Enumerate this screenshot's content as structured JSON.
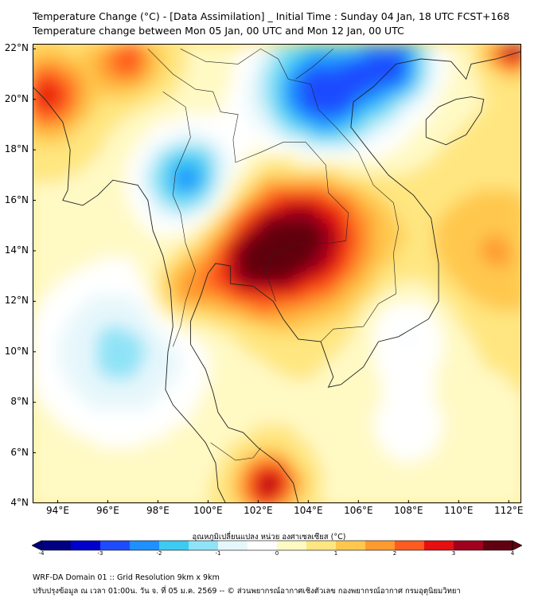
{
  "header": {
    "title_line1": "Temperature Change (°C) - [Data Assimilation] _ Initial Time : Sunday 04 Jan, 18 UTC FCST+168",
    "title_line2": "Temperature change between Mon 05 Jan, 00 UTC and Mon 12 Jan, 00 UTC"
  },
  "map": {
    "lon_labels": [
      "94°E",
      "96°E",
      "98°E",
      "100°E",
      "102°E",
      "104°E",
      "106°E",
      "108°E",
      "110°E",
      "112°E"
    ],
    "lat_labels": [
      "22°N",
      "20°N",
      "18°N",
      "16°N",
      "14°N",
      "12°N",
      "10°N",
      "8°N",
      "6°N",
      "4°N"
    ],
    "lon_range": [
      93,
      112.5
    ],
    "lat_range": [
      4,
      22.2
    ],
    "lon_values": [
      94,
      96,
      98,
      100,
      102,
      104,
      106,
      108,
      110,
      112
    ],
    "lat_values": [
      22,
      20,
      18,
      16,
      14,
      12,
      10,
      8,
      6,
      4
    ],
    "features": [
      {
        "name": "warm-core-central-indochina",
        "lon": 103.8,
        "lat": 14.6,
        "delta": 3.3,
        "spread": 1.9
      },
      {
        "name": "warm-east-thailand",
        "lon": 101.6,
        "lat": 13.4,
        "delta": 2.2,
        "spread": 1.3
      },
      {
        "name": "warm-south-peninsula",
        "lon": 102.4,
        "lat": 4.8,
        "delta": 3.0,
        "spread": 0.8
      },
      {
        "name": "warm-northwest",
        "lon": 93.6,
        "lat": 20.2,
        "delta": 2.4,
        "spread": 1.1
      },
      {
        "name": "warm-north-coast",
        "lon": 96.8,
        "lat": 21.6,
        "delta": 2.0,
        "spread": 0.9
      },
      {
        "name": "warm-northeast-corner",
        "lon": 112.2,
        "lat": 22.1,
        "delta": 3.0,
        "spread": 0.7
      },
      {
        "name": "warm-myanmar-central",
        "lon": 99.0,
        "lat": 12.4,
        "delta": 1.7,
        "spread": 0.9
      },
      {
        "name": "cool-north-laos-vietnam",
        "lon": 104.6,
        "lat": 20.3,
        "delta": -3.3,
        "spread": 1.9
      },
      {
        "name": "cool-gulf-tonkin",
        "lon": 107.6,
        "lat": 21.5,
        "delta": -2.3,
        "spread": 1.1
      },
      {
        "name": "cool-myanmar-north",
        "lon": 99.2,
        "lat": 16.9,
        "delta": -2.6,
        "spread": 1.3
      },
      {
        "name": "cool-andaman",
        "lon": 96.5,
        "lat": 10.0,
        "delta": -1.5,
        "spread": 2.4
      },
      {
        "name": "cool-south-china-sea",
        "lon": 108.0,
        "lat": 11.0,
        "delta": -0.9,
        "spread": 1.3
      },
      {
        "name": "cool-south-sea",
        "lon": 108.0,
        "lat": 7.0,
        "delta": -0.5,
        "spread": 1.8
      },
      {
        "name": "warm-hainan-east",
        "lon": 111.5,
        "lat": 14.0,
        "delta": 1.2,
        "spread": 2.0
      }
    ],
    "base_delta": 0.5
  },
  "colorbar": {
    "label": "อุณหภูมิเปลี่ยนแปลง หน่วย องศาเซลเซียส (°C)",
    "ticks": [
      "-4",
      "-3",
      "-2",
      "-1",
      "0",
      "1",
      "2",
      "3",
      "4"
    ],
    "tick_values": [
      -4,
      -3,
      -2,
      -1,
      0,
      1,
      2,
      3,
      4
    ],
    "colors": [
      "#000080",
      "#0000cd",
      "#1e4bff",
      "#1e90ff",
      "#3ccbf2",
      "#8fe3f7",
      "#e6f7fb",
      "#ffffff",
      "#fff9c4",
      "#ffe680",
      "#ffc84d",
      "#ff9a2e",
      "#ff5a1f",
      "#e61010",
      "#a0001c",
      "#600010"
    ]
  },
  "footer": {
    "line1": "WRF-DA Domain 01 :: Grid Resolution 9km x 9km",
    "line2": "ปรับปรุงข้อมูล ณ เวลา 01:00น. วัน จ. ที่ 05 ม.ค. 2569 -- © ส่วนพยากรณ์อากาศเชิงตัวเลข กองพยากรณ์อากาศ กรมอุตุนิยมวิทยา"
  }
}
